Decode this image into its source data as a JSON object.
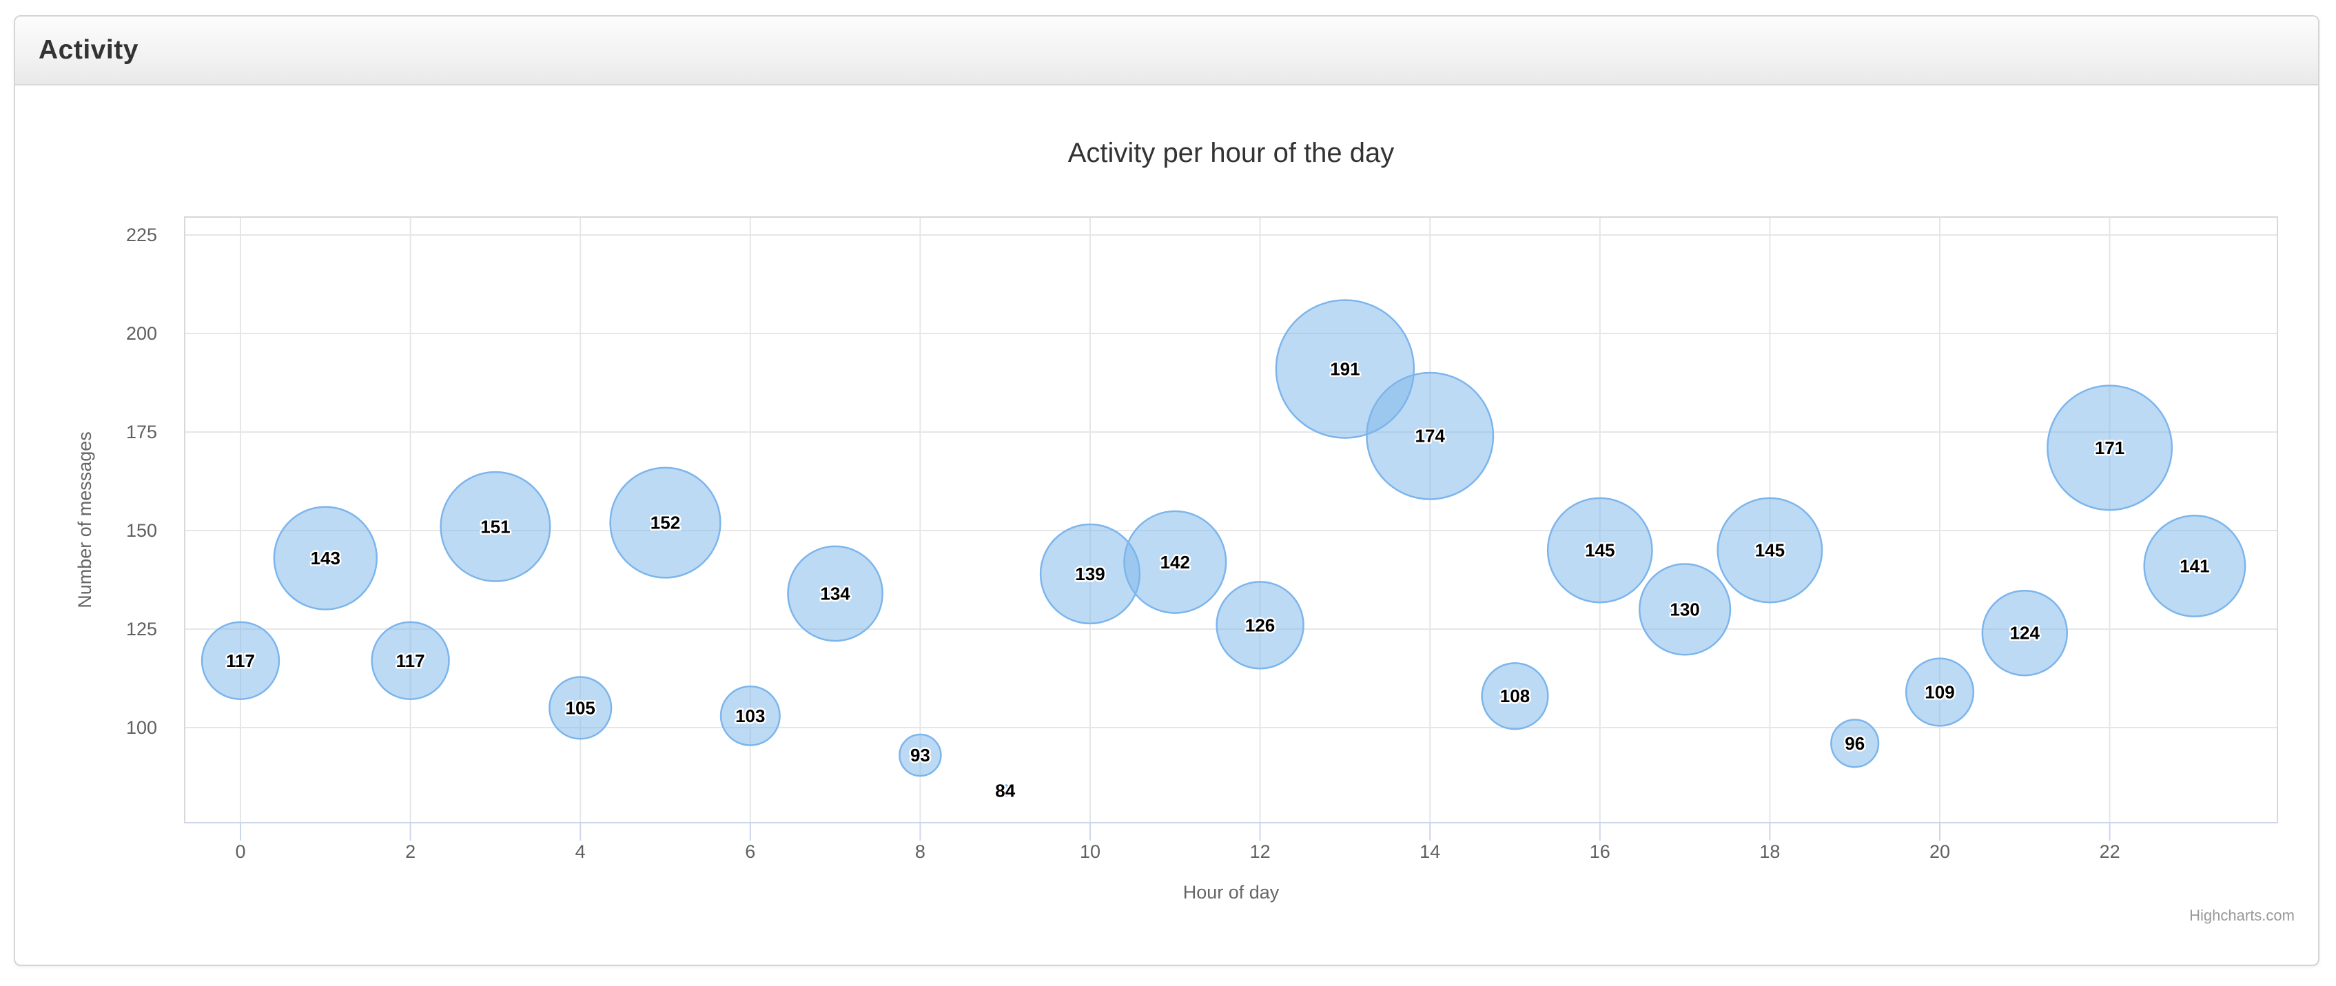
{
  "panel": {
    "title": "Activity"
  },
  "chart_data": {
    "type": "bubble",
    "title": "Activity per hour of the day",
    "xlabel": "Hour of day",
    "ylabel": "Number of messages",
    "x_tick_labels": [
      0,
      2,
      4,
      6,
      8,
      10,
      12,
      14,
      16,
      18,
      20,
      22
    ],
    "y_tick_labels": [
      100,
      125,
      150,
      175,
      200,
      225
    ],
    "x_range": [
      -0.7,
      24.0
    ],
    "y_range": [
      76,
      229.5
    ],
    "grid": true,
    "legend": "none",
    "series_color": "#7cb5ec",
    "bubble_fill": "rgba(124,181,236,0.5)",
    "points": [
      {
        "hour": 0,
        "messages": 117
      },
      {
        "hour": 1,
        "messages": 143
      },
      {
        "hour": 2,
        "messages": 117
      },
      {
        "hour": 3,
        "messages": 151
      },
      {
        "hour": 4,
        "messages": 105
      },
      {
        "hour": 5,
        "messages": 152
      },
      {
        "hour": 6,
        "messages": 103
      },
      {
        "hour": 7,
        "messages": 134
      },
      {
        "hour": 8,
        "messages": 93
      },
      {
        "hour": 9,
        "messages": 84
      },
      {
        "hour": 10,
        "messages": 139
      },
      {
        "hour": 11,
        "messages": 142
      },
      {
        "hour": 12,
        "messages": 126
      },
      {
        "hour": 13,
        "messages": 191
      },
      {
        "hour": 14,
        "messages": 174
      },
      {
        "hour": 15,
        "messages": 108
      },
      {
        "hour": 16,
        "messages": 145
      },
      {
        "hour": 17,
        "messages": 130
      },
      {
        "hour": 18,
        "messages": 145
      },
      {
        "hour": 19,
        "messages": 96
      },
      {
        "hour": 20,
        "messages": 109
      },
      {
        "hour": 21,
        "messages": 124
      },
      {
        "hour": 22,
        "messages": 171
      },
      {
        "hour": 23,
        "messages": 141
      }
    ]
  },
  "credits": "Highcharts.com"
}
